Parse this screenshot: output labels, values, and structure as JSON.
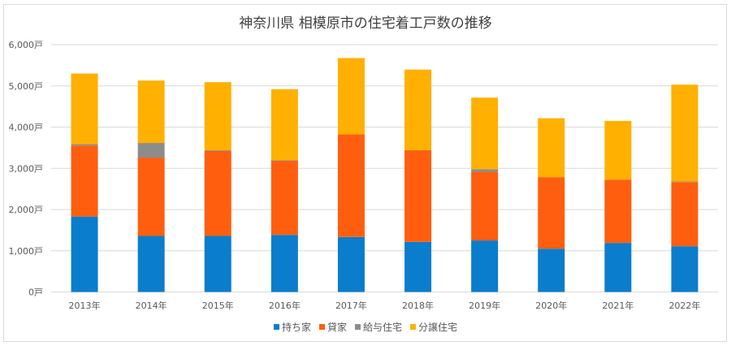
{
  "chart_data": {
    "type": "bar",
    "stacked": true,
    "title": "神奈川県 相模原市の住宅着工戸数の推移",
    "xlabel": "",
    "ylabel": "",
    "ylim": [
      0,
      6000
    ],
    "y_ticks": [
      "0戸",
      "1,000戸",
      "2,000戸",
      "3,000戸",
      "4,000戸",
      "5,000戸",
      "6,000戸"
    ],
    "grid": true,
    "legend_position": "bottom",
    "categories": [
      "2013年",
      "2014年",
      "2015年",
      "2016年",
      "2017年",
      "2018年",
      "2019年",
      "2020年",
      "2021年",
      "2022年"
    ],
    "series": [
      {
        "name": "持ち家",
        "color": "#0a7dcc",
        "values": [
          1830,
          1360,
          1360,
          1385,
          1335,
          1215,
          1250,
          1050,
          1190,
          1110
        ]
      },
      {
        "name": "貸家",
        "color": "#ff5e0e",
        "values": [
          1720,
          1900,
          2060,
          1800,
          2490,
          2225,
          1665,
          1735,
          1535,
          1555
        ]
      },
      {
        "name": "給与住宅",
        "color": "#8c8c8c",
        "values": [
          35,
          355,
          20,
          15,
          0,
          0,
          65,
          0,
          0,
          15
        ]
      },
      {
        "name": "分譲住宅",
        "color": "#ffb000",
        "values": [
          1715,
          1515,
          1650,
          1720,
          1850,
          1955,
          1735,
          1430,
          1425,
          2350
        ]
      }
    ]
  }
}
